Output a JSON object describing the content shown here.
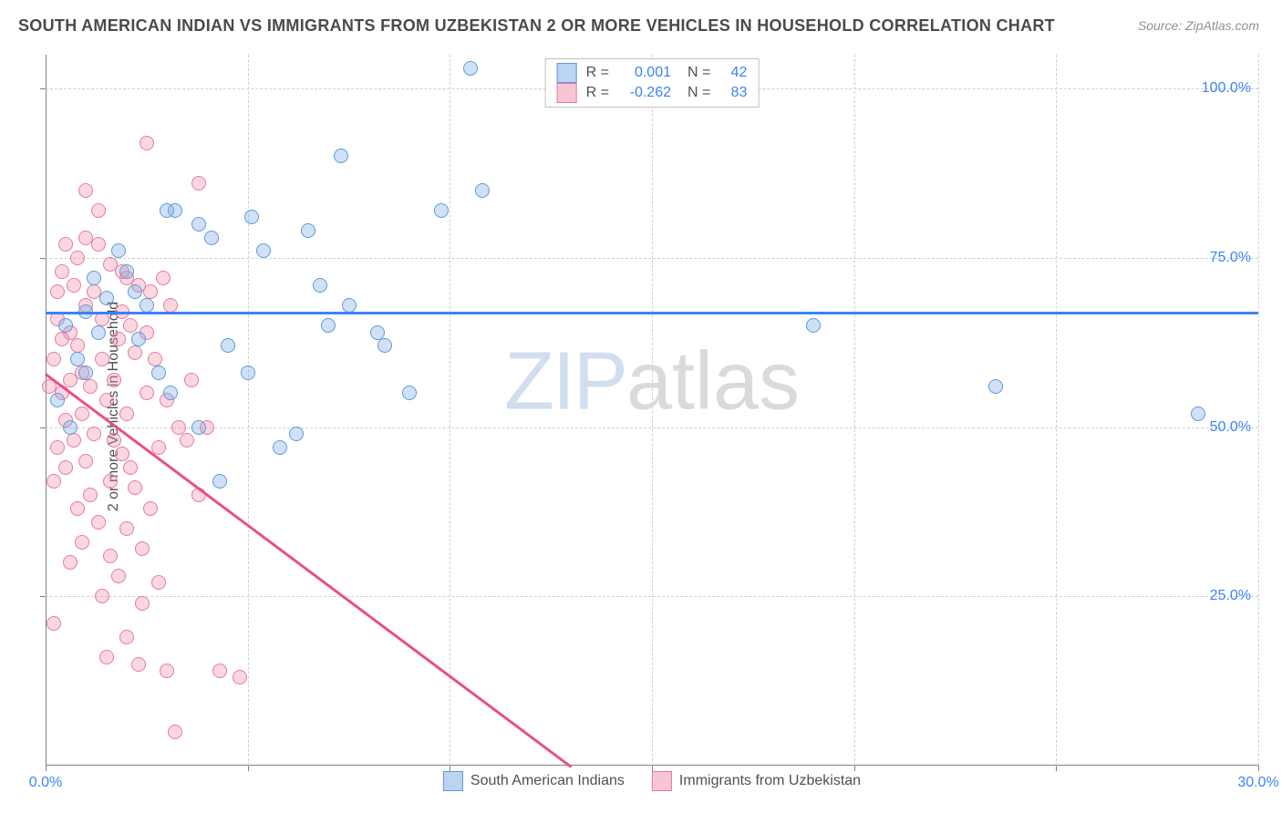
{
  "title": "SOUTH AMERICAN INDIAN VS IMMIGRANTS FROM UZBEKISTAN 2 OR MORE VEHICLES IN HOUSEHOLD CORRELATION CHART",
  "source": "Source: ZipAtlas.com",
  "ylabel": "2 or more Vehicles in Household",
  "watermark": {
    "part1": "ZIP",
    "part2": "atlas"
  },
  "chart": {
    "type": "scatter",
    "background_color": "#ffffff",
    "grid_color": "#d0d0d0",
    "axis_color": "#808080",
    "tick_label_color": "#3b82f6",
    "label_fontsize": 16,
    "title_fontsize": 18,
    "xlim": [
      0,
      30
    ],
    "ylim": [
      0,
      105
    ],
    "xticks": [
      {
        "v": 0.0,
        "label": "0.0%"
      },
      {
        "v": 5.0,
        "label": ""
      },
      {
        "v": 10.0,
        "label": ""
      },
      {
        "v": 15.0,
        "label": ""
      },
      {
        "v": 20.0,
        "label": ""
      },
      {
        "v": 25.0,
        "label": ""
      },
      {
        "v": 30.0,
        "label": "30.0%"
      }
    ],
    "yticks": [
      {
        "v": 25.0,
        "label": "25.0%"
      },
      {
        "v": 50.0,
        "label": "50.0%"
      },
      {
        "v": 75.0,
        "label": "75.0%"
      },
      {
        "v": 100.0,
        "label": "100.0%"
      }
    ],
    "series": [
      {
        "name": "South American Indians",
        "marker_fill": "rgba(120,170,230,0.35)",
        "marker_stroke": "#5a9bd8",
        "swatch_fill": "rgba(120,170,230,0.5)",
        "swatch_stroke": "#5a9bd8",
        "marker_size": 16,
        "R": "0.001",
        "N": "42",
        "trend": {
          "x1": 0,
          "y1": 67,
          "x2": 30,
          "y2": 67,
          "color": "#3b82f6"
        },
        "points": [
          [
            10.5,
            103
          ],
          [
            7.3,
            90
          ],
          [
            10.8,
            85
          ],
          [
            5.1,
            81
          ],
          [
            3.2,
            82
          ],
          [
            3.8,
            80
          ],
          [
            4.1,
            78
          ],
          [
            5.4,
            76
          ],
          [
            2.0,
            73
          ],
          [
            1.2,
            72
          ],
          [
            1.5,
            69
          ],
          [
            1.0,
            67
          ],
          [
            0.5,
            65
          ],
          [
            0.8,
            60
          ],
          [
            2.3,
            63
          ],
          [
            2.8,
            58
          ],
          [
            3.1,
            55
          ],
          [
            6.8,
            71
          ],
          [
            7.5,
            68
          ],
          [
            7.0,
            65
          ],
          [
            8.2,
            64
          ],
          [
            8.4,
            62
          ],
          [
            9.0,
            55
          ],
          [
            5.0,
            58
          ],
          [
            3.8,
            50
          ],
          [
            4.3,
            42
          ],
          [
            6.2,
            49
          ],
          [
            2.2,
            70
          ],
          [
            1.8,
            76
          ],
          [
            9.8,
            82
          ],
          [
            6.5,
            79
          ],
          [
            2.5,
            68
          ],
          [
            1.0,
            58
          ],
          [
            0.3,
            54
          ],
          [
            0.6,
            50
          ],
          [
            19.0,
            65
          ],
          [
            23.5,
            56
          ],
          [
            28.5,
            52
          ],
          [
            5.8,
            47
          ],
          [
            3.0,
            82
          ],
          [
            4.5,
            62
          ],
          [
            1.3,
            64
          ]
        ]
      },
      {
        "name": "Immigrants from Uzbekistan",
        "marker_fill": "rgba(240,140,170,0.35)",
        "marker_stroke": "#e67aa0",
        "swatch_fill": "rgba(240,140,170,0.5)",
        "swatch_stroke": "#e67aa0",
        "marker_size": 16,
        "R": "-0.262",
        "N": "83",
        "trend": {
          "x1": 0,
          "y1": 58,
          "x2": 13,
          "y2": 0,
          "color": "#e84f8a",
          "dash_extend_to": 30
        },
        "points": [
          [
            2.5,
            92
          ],
          [
            3.8,
            86
          ],
          [
            1.0,
            85
          ],
          [
            1.3,
            82
          ],
          [
            0.5,
            77
          ],
          [
            0.8,
            75
          ],
          [
            1.6,
            74
          ],
          [
            2.0,
            72
          ],
          [
            2.3,
            71
          ],
          [
            0.3,
            70
          ],
          [
            1.0,
            68
          ],
          [
            1.4,
            66
          ],
          [
            0.6,
            64
          ],
          [
            1.8,
            63
          ],
          [
            2.2,
            61
          ],
          [
            0.2,
            60
          ],
          [
            0.9,
            58
          ],
          [
            2.7,
            60
          ],
          [
            1.1,
            56
          ],
          [
            0.4,
            55
          ],
          [
            1.5,
            54
          ],
          [
            2.0,
            52
          ],
          [
            2.5,
            55
          ],
          [
            3.0,
            54
          ],
          [
            3.3,
            50
          ],
          [
            1.2,
            49
          ],
          [
            0.7,
            48
          ],
          [
            0.3,
            47
          ],
          [
            2.8,
            47
          ],
          [
            1.9,
            46
          ],
          [
            0.5,
            44
          ],
          [
            1.6,
            42
          ],
          [
            2.2,
            41
          ],
          [
            3.5,
            48
          ],
          [
            4.0,
            50
          ],
          [
            3.8,
            40
          ],
          [
            0.8,
            38
          ],
          [
            1.3,
            36
          ],
          [
            2.0,
            35
          ],
          [
            2.6,
            38
          ],
          [
            2.4,
            32
          ],
          [
            0.6,
            30
          ],
          [
            1.8,
            28
          ],
          [
            2.8,
            27
          ],
          [
            0.2,
            21
          ],
          [
            1.4,
            25
          ],
          [
            2.0,
            19
          ],
          [
            1.5,
            16
          ],
          [
            2.3,
            15
          ],
          [
            3.0,
            14
          ],
          [
            4.3,
            14
          ],
          [
            4.8,
            13
          ],
          [
            3.2,
            5
          ],
          [
            1.0,
            45
          ],
          [
            0.4,
            63
          ],
          [
            0.1,
            56
          ],
          [
            0.9,
            52
          ],
          [
            1.7,
            57
          ],
          [
            2.1,
            65
          ],
          [
            1.2,
            70
          ],
          [
            1.9,
            73
          ],
          [
            0.7,
            71
          ],
          [
            0.3,
            66
          ],
          [
            1.4,
            60
          ],
          [
            2.5,
            64
          ],
          [
            0.5,
            51
          ],
          [
            1.1,
            40
          ],
          [
            0.9,
            33
          ],
          [
            1.6,
            31
          ],
          [
            2.4,
            24
          ],
          [
            3.1,
            68
          ],
          [
            3.6,
            57
          ],
          [
            2.9,
            72
          ],
          [
            0.2,
            42
          ],
          [
            0.8,
            62
          ],
          [
            1.3,
            77
          ],
          [
            1.7,
            48
          ],
          [
            2.1,
            44
          ],
          [
            2.6,
            70
          ],
          [
            0.4,
            73
          ],
          [
            1.0,
            78
          ],
          [
            1.9,
            67
          ],
          [
            0.6,
            57
          ]
        ]
      }
    ],
    "legend_top_labels": {
      "R": "R =",
      "N": "N ="
    },
    "legend_bottom": true
  }
}
